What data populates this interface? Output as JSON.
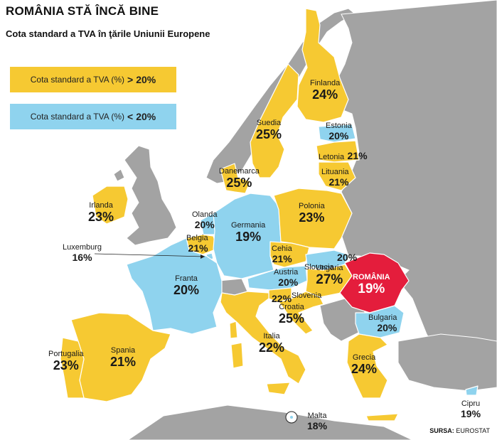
{
  "title": "ROMÂNIA STĂ ÎNCĂ BINE",
  "subtitle": "Cota standard a TVA în ţările Uniunii Europene",
  "legend": [
    {
      "text": "Cota standard a TVA (%)",
      "op": ">",
      "threshold": "20%",
      "color": "#F6C932"
    },
    {
      "text": "Cota standard a TVA (%)",
      "op": "<",
      "threshold": "20%",
      "color": "#8FD3EE"
    }
  ],
  "colors": {
    "above": "#F6C932",
    "below": "#8FD3EE",
    "romania": "#E41D3C",
    "non_eu": "#A3A3A3",
    "sea": "#FFFFFF"
  },
  "countries": [
    {
      "name": "Finlanda",
      "rate": "24%"
    },
    {
      "name": "Suedia",
      "rate": "25%"
    },
    {
      "name": "Estonia",
      "rate": "20%"
    },
    {
      "name": "Letonia",
      "rate": "21%"
    },
    {
      "name": "Lituania",
      "rate": "21%"
    },
    {
      "name": "Danemarca",
      "rate": "25%"
    },
    {
      "name": "Irlanda",
      "rate": "23%"
    },
    {
      "name": "Olanda",
      "rate": "20%"
    },
    {
      "name": "Germania",
      "rate": "19%"
    },
    {
      "name": "Polonia",
      "rate": "23%"
    },
    {
      "name": "Belgia",
      "rate": "21%"
    },
    {
      "name": "Luxemburg",
      "rate": "16%"
    },
    {
      "name": "Cehia",
      "rate": "21%"
    },
    {
      "name": "Slovacia",
      "rate": "20%"
    },
    {
      "name": "Franta",
      "rate": "20%"
    },
    {
      "name": "Austria",
      "rate": "20%"
    },
    {
      "name": "Ungaria",
      "rate": "27%"
    },
    {
      "name": "ROMÂNIA",
      "rate": "19%"
    },
    {
      "name": "Slovenia",
      "rate": "22%"
    },
    {
      "name": "Croatia",
      "rate": "25%"
    },
    {
      "name": "Bulgaria",
      "rate": "20%"
    },
    {
      "name": "Italia",
      "rate": "22%"
    },
    {
      "name": "Spania",
      "rate": "21%"
    },
    {
      "name": "Portugalia",
      "rate": "23%"
    },
    {
      "name": "Grecia",
      "rate": "24%"
    },
    {
      "name": "Malta",
      "rate": "18%"
    },
    {
      "name": "Cipru",
      "rate": "19%"
    }
  ],
  "source": {
    "label": "SURSA:",
    "name": "EUROSTAT"
  }
}
